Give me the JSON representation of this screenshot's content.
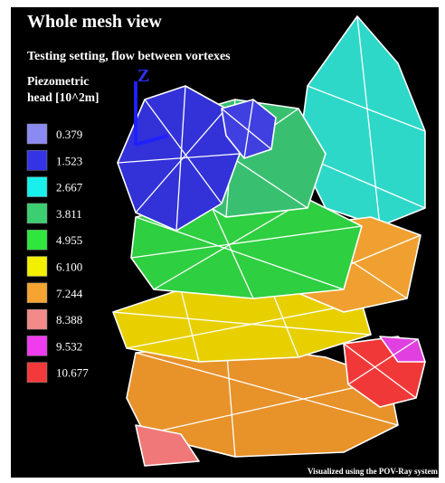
{
  "header": {
    "title": "Whole mesh view",
    "subtitle": "Testing setting, flow between vortexes"
  },
  "legend": {
    "title": "Piezometric head [10^2m]",
    "items": [
      {
        "label": "0.379",
        "color": "#8a8af2"
      },
      {
        "label": "1.523",
        "color": "#3434e6"
      },
      {
        "label": "2.667",
        "color": "#19f0ec"
      },
      {
        "label": "3.811",
        "color": "#3ccf72"
      },
      {
        "label": "4.955",
        "color": "#2ee63c"
      },
      {
        "label": "6.100",
        "color": "#f2f000"
      },
      {
        "label": "7.244",
        "color": "#f5a431"
      },
      {
        "label": "8.388",
        "color": "#f28a8a"
      },
      {
        "label": "9.532",
        "color": "#ee3cee"
      },
      {
        "label": "10.677",
        "color": "#f23a3a"
      }
    ]
  },
  "axis_label": "Z",
  "footer": "Visualized using the POV-Ray system"
}
